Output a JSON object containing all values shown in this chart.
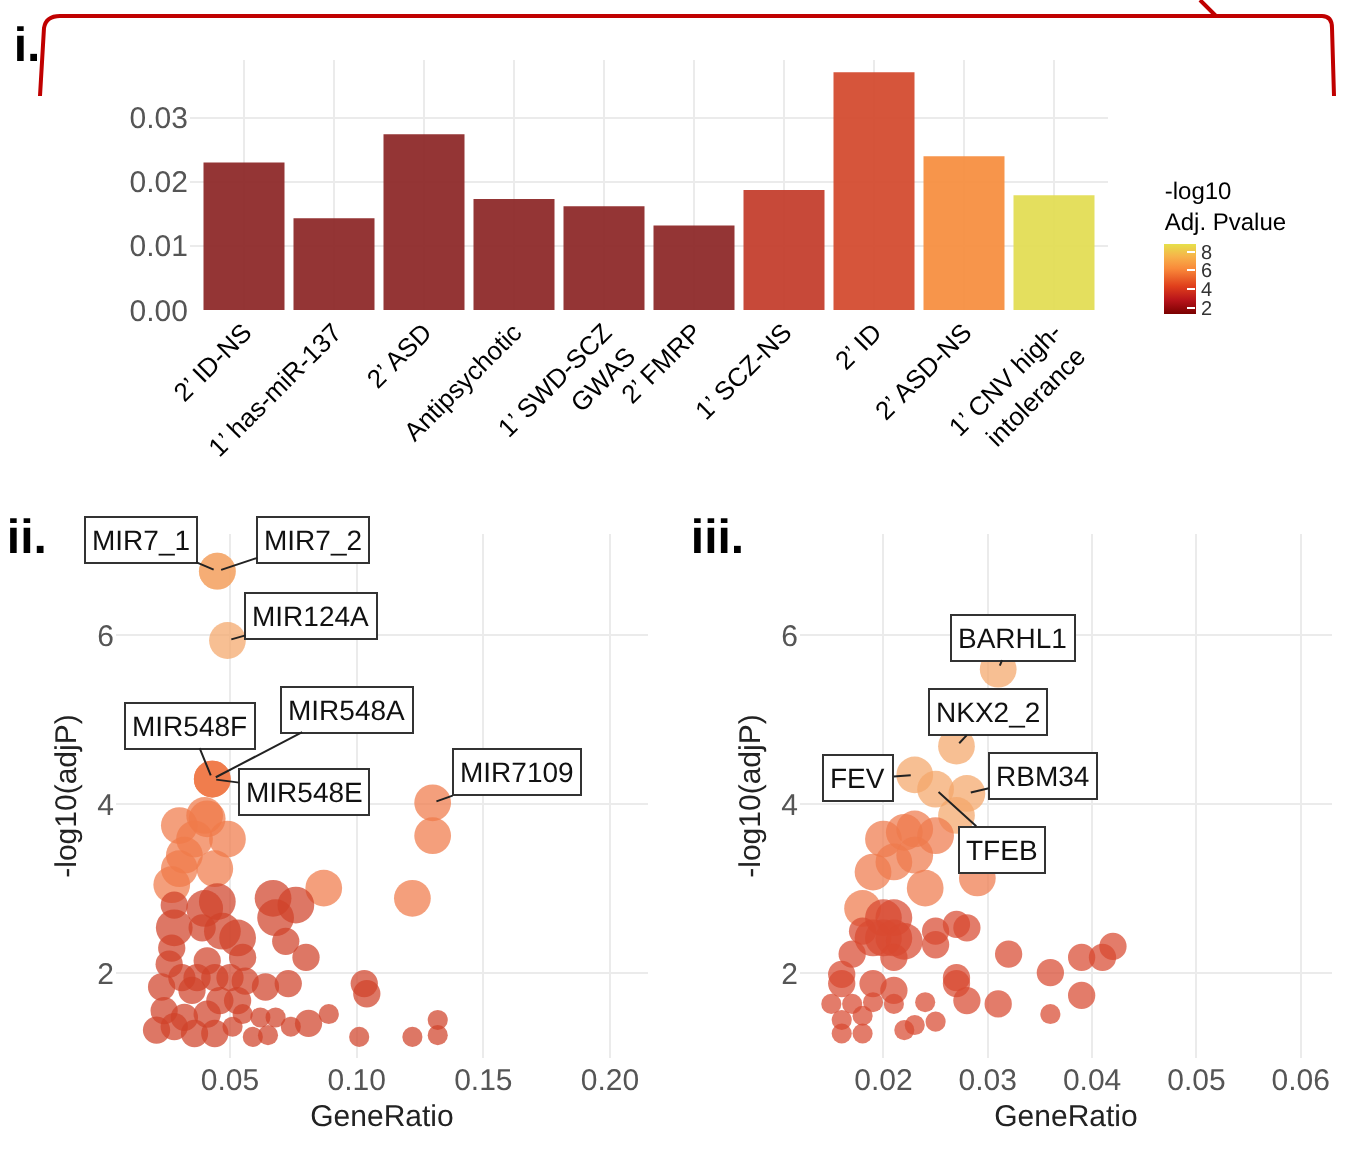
{
  "chart_data": [
    {
      "type": "bar",
      "title": "i.",
      "categories": [
        "2’ ID-NS",
        "1’ has-miR-137",
        "2’ ASD",
        "Antipsychotic",
        "1’ SWD-SCZ\nGWAS",
        "2’ FMRP",
        "1’ SCZ-NS",
        "2’ ID",
        "2’ ASD-NS",
        "1’ CNV high-\nintolerance"
      ],
      "values": [
        0.023,
        0.0143,
        0.0274,
        0.0173,
        0.0162,
        0.0132,
        0.0187,
        0.0371,
        0.024,
        0.0179
      ],
      "colors": [
        "#8b2424",
        "#8b2424",
        "#8b2424",
        "#8b2424",
        "#8b2424",
        "#8b2424",
        "#c23a28",
        "#d2472a",
        "#f68c3c",
        "#e2dc50"
      ],
      "ylim": [
        0,
        0.039
      ],
      "yticks": [
        {
          "value": 0,
          "label": "0.00"
        },
        0.01,
        0.02,
        0.03
      ],
      "grid": true,
      "clabel": "-log10\nAdj. Pvalue",
      "clim": [
        1.2,
        8.8
      ],
      "cticks": [
        2,
        4,
        6,
        8
      ]
    },
    {
      "type": "bubble",
      "title": "ii.",
      "xlabel": "GeneRatio",
      "ylabel": "-log10(adjP)",
      "xlim": [
        0.005,
        0.215
      ],
      "ylim": [
        1.0,
        7.2
      ],
      "xticks": [
        0.05,
        {
          "value": 0.1,
          "label": "0.10"
        },
        0.15,
        {
          "value": 0.2,
          "label": "0.20"
        }
      ],
      "yticks": [
        2,
        4,
        6
      ],
      "grid": true,
      "series": [
        {
          "color": "#f4a66a",
          "x": [
            0.045,
            0.045,
            0.049
          ],
          "values": [
            6.76,
            6.76,
            5.94
          ],
          "sizes": [
            1,
            1,
            1
          ]
        },
        {
          "color": "#f07a4a",
          "x": [
            0.043,
            0.043,
            0.043,
            0.13,
            0.13,
            0.122,
            0.03,
            0.04,
            0.041,
            0.036,
            0.049,
            0.032,
            0.03,
            0.044,
            0.027,
            0.087
          ],
          "values": [
            4.3,
            4.3,
            4.3,
            4.02,
            3.63,
            2.89,
            3.75,
            3.87,
            3.83,
            3.59,
            3.59,
            3.4,
            3.24,
            3.24,
            3.05,
            3.01
          ],
          "sizes": [
            1,
            1,
            1,
            1,
            1,
            1,
            1,
            1,
            1,
            1,
            1,
            1,
            1,
            1,
            1,
            1
          ]
        },
        {
          "color": "#d0422a",
          "x": [
            0.028,
            0.04,
            0.045,
            0.067,
            0.076,
            0.028,
            0.039,
            0.047,
            0.053,
            0.068,
            0.072,
            0.08,
            0.027,
            0.041,
            0.055,
            0.026,
            0.031,
            0.037,
            0.044,
            0.05,
            0.056,
            0.023,
            0.035,
            0.046,
            0.053,
            0.064,
            0.073,
            0.103,
            0.104,
            0.024,
            0.032,
            0.041,
            0.055,
            0.062,
            0.068,
            0.081,
            0.089,
            0.021,
            0.028,
            0.036,
            0.044,
            0.051,
            0.059,
            0.065,
            0.074,
            0.101,
            0.122,
            0.132,
            0.132
          ],
          "values": [
            2.81,
            2.77,
            2.85,
            2.89,
            2.81,
            2.54,
            2.54,
            2.5,
            2.42,
            2.66,
            2.38,
            2.19,
            2.3,
            2.15,
            2.19,
            2.11,
            1.95,
            1.95,
            1.95,
            1.95,
            1.91,
            1.84,
            1.8,
            1.68,
            1.68,
            1.84,
            1.88,
            1.88,
            1.76,
            1.56,
            1.48,
            1.52,
            1.52,
            1.48,
            1.48,
            1.41,
            1.52,
            1.33,
            1.37,
            1.29,
            1.29,
            1.37,
            1.25,
            1.27,
            1.37,
            1.25,
            1.25,
            1.45,
            1.27
          ],
          "sizes": [
            0.55,
            1,
            1,
            1,
            1,
            1,
            0.55,
            1,
            1,
            1,
            0.55,
            0.55,
            0.55,
            0.55,
            0.55,
            0.55,
            0.55,
            0.55,
            0.55,
            0.55,
            0.55,
            0.55,
            0.55,
            0.55,
            0.55,
            0.55,
            0.55,
            0.55,
            0.55,
            0.55,
            0.55,
            0.55,
            0.3,
            0.3,
            0.3,
            0.55,
            0.3,
            0.55,
            0.55,
            0.55,
            0.55,
            0.3,
            0.3,
            0.3,
            0.3,
            0.3,
            0.3,
            0.3,
            0.3
          ]
        }
      ],
      "annotations": [
        {
          "text": "MIR7_1",
          "x": 0.045,
          "y": 6.76
        },
        {
          "text": "MIR7_2",
          "x": 0.045,
          "y": 6.76
        },
        {
          "text": "MIR124A",
          "x": 0.049,
          "y": 5.94
        },
        {
          "text": "MIR548A",
          "x": 0.043,
          "y": 4.3
        },
        {
          "text": "MIR548F",
          "x": 0.043,
          "y": 4.3
        },
        {
          "text": "MIR548E",
          "x": 0.043,
          "y": 4.3
        },
        {
          "text": "MIR7109",
          "x": 0.13,
          "y": 4.02
        }
      ]
    },
    {
      "type": "bubble",
      "title": "iii.",
      "xlabel": "GeneRatio",
      "ylabel": "-log10(adjP)",
      "xlim": [
        0.012,
        0.063
      ],
      "ylim": [
        1.0,
        7.2
      ],
      "xticks": [
        0.02,
        0.03,
        0.04,
        0.05,
        0.06
      ],
      "yticks": [
        2,
        4,
        6
      ],
      "grid": true,
      "series": [
        {
          "color": "#f4a66a",
          "x": [
            0.031,
            0.027,
            0.023,
            0.025,
            0.028,
            0.027
          ],
          "values": [
            5.6,
            4.69,
            4.35,
            4.18,
            4.13,
            3.87
          ],
          "sizes": [
            1,
            1,
            1,
            1,
            1,
            1
          ]
        },
        {
          "color": "#ee7a4c",
          "x": [
            0.02,
            0.022,
            0.023,
            0.025,
            0.021,
            0.023,
            0.019,
            0.024,
            0.029,
            0.018
          ],
          "values": [
            3.59,
            3.67,
            3.71,
            3.63,
            3.32,
            3.4,
            3.2,
            3.01,
            3.13,
            2.77
          ],
          "sizes": [
            1,
            1,
            1,
            1,
            1,
            1,
            1,
            1,
            1,
            1
          ]
        },
        {
          "color": "#d84a30",
          "x": [
            0.018,
            0.02,
            0.021,
            0.019,
            0.02,
            0.021,
            0.022,
            0.025,
            0.025,
            0.027,
            0.028,
            0.017,
            0.021,
            0.016,
            0.016,
            0.019,
            0.021,
            0.027,
            0.027,
            0.028,
            0.031,
            0.032,
            0.036,
            0.039,
            0.036,
            0.039,
            0.041,
            0.042,
            0.015,
            0.017,
            0.019,
            0.021,
            0.024,
            0.016,
            0.018,
            0.016,
            0.018,
            0.022,
            0.023,
            0.025
          ],
          "values": [
            2.5,
            2.66,
            2.66,
            2.42,
            2.42,
            2.42,
            2.38,
            2.34,
            2.5,
            2.58,
            2.54,
            2.23,
            2.19,
            1.99,
            1.88,
            1.88,
            1.8,
            1.95,
            1.88,
            1.68,
            1.64,
            2.23,
            2.01,
            1.74,
            1.52,
            2.19,
            2.19,
            2.32,
            1.64,
            1.64,
            1.66,
            1.64,
            1.66,
            1.45,
            1.5,
            1.29,
            1.29,
            1.33,
            1.39,
            1.43
          ],
          "sizes": [
            0.55,
            1,
            1,
            1,
            1,
            1,
            1,
            0.55,
            0.55,
            0.55,
            0.55,
            0.55,
            0.55,
            0.55,
            0.55,
            0.55,
            0.55,
            0.55,
            0.55,
            0.55,
            0.55,
            0.55,
            0.55,
            0.55,
            0.3,
            0.55,
            0.55,
            0.55,
            0.3,
            0.3,
            0.3,
            0.3,
            0.3,
            0.3,
            0.3,
            0.3,
            0.3,
            0.3,
            0.3,
            0.3
          ]
        }
      ],
      "annotations": [
        {
          "text": "BARHL1",
          "x": 0.031,
          "y": 5.6
        },
        {
          "text": "NKX2_2",
          "x": 0.027,
          "y": 4.69
        },
        {
          "text": "FEV",
          "x": 0.023,
          "y": 4.35
        },
        {
          "text": "RBM34",
          "x": 0.028,
          "y": 4.13
        },
        {
          "text": "TFEB",
          "x": 0.025,
          "y": 4.18
        }
      ]
    }
  ]
}
